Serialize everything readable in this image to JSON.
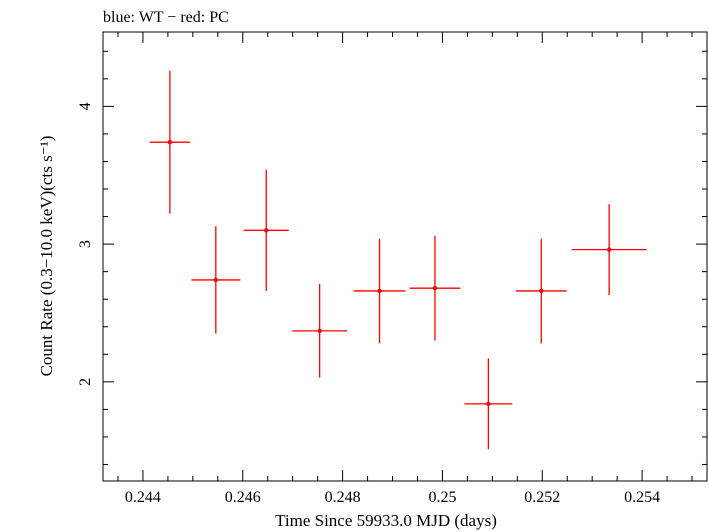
{
  "chart_data": {
    "type": "scatter",
    "title": "blue: WT − red: PC",
    "xlabel": "Time Since 59933.0 MJD (days)",
    "ylabel": "Count Rate (0.3−10.0 keV)(cts s⁻¹)",
    "xlim": [
      0.2432,
      0.2553
    ],
    "ylim": [
      1.28,
      4.54
    ],
    "x_ticks_major": [
      0.244,
      0.246,
      0.248,
      0.25,
      0.252,
      0.254
    ],
    "x_tick_labels": [
      "0.244",
      "0.246",
      "0.248",
      "0.25",
      "0.252",
      "0.254"
    ],
    "y_ticks_major": [
      2,
      3,
      4
    ],
    "y_tick_labels": [
      "2",
      "3",
      "4"
    ],
    "grid": false,
    "series": [
      {
        "color": "#ff0000",
        "points": [
          {
            "x": 0.24454,
            "xerr_lo": 0.0004,
            "xerr_hi": 0.0004,
            "y": 3.74,
            "yerr_lo": 0.52,
            "yerr_hi": 0.52
          },
          {
            "x": 0.24546,
            "xerr_lo": 0.00049,
            "xerr_hi": 0.00049,
            "y": 2.74,
            "yerr_lo": 0.39,
            "yerr_hi": 0.39
          },
          {
            "x": 0.24647,
            "xerr_lo": 0.00045,
            "xerr_hi": 0.00045,
            "y": 3.1,
            "yerr_lo": 0.44,
            "yerr_hi": 0.44
          },
          {
            "x": 0.24754,
            "xerr_lo": 0.00055,
            "xerr_hi": 0.00055,
            "y": 2.37,
            "yerr_lo": 0.34,
            "yerr_hi": 0.34
          },
          {
            "x": 0.24874,
            "xerr_lo": 0.00052,
            "xerr_hi": 0.00052,
            "y": 2.66,
            "yerr_lo": 0.38,
            "yerr_hi": 0.38
          },
          {
            "x": 0.24985,
            "xerr_lo": 0.00051,
            "xerr_hi": 0.00051,
            "y": 2.68,
            "yerr_lo": 0.38,
            "yerr_hi": 0.38
          },
          {
            "x": 0.25092,
            "xerr_lo": 0.00048,
            "xerr_hi": 0.00048,
            "y": 1.84,
            "yerr_lo": 0.33,
            "yerr_hi": 0.33
          },
          {
            "x": 0.25198,
            "xerr_lo": 0.00051,
            "xerr_hi": 0.00051,
            "y": 2.66,
            "yerr_lo": 0.38,
            "yerr_hi": 0.38
          },
          {
            "x": 0.25334,
            "xerr_lo": 0.00075,
            "xerr_hi": 0.00075,
            "y": 2.96,
            "yerr_lo": 0.33,
            "yerr_hi": 0.33
          }
        ]
      }
    ]
  }
}
